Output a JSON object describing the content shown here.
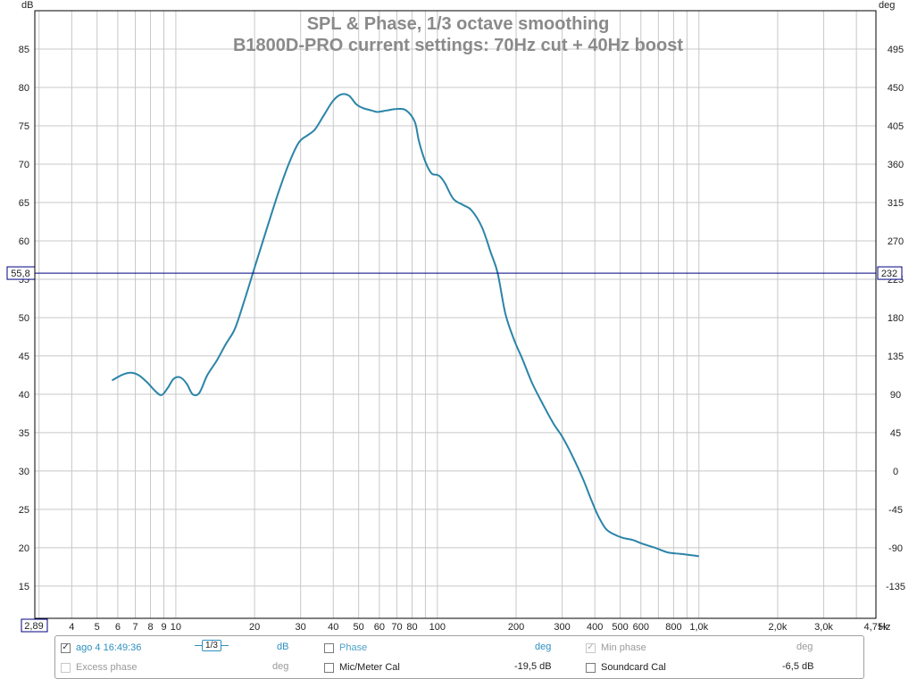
{
  "chart_data": {
    "type": "line",
    "title": "SPL & Phase, 1/3 octave smoothing",
    "subtitle": "B1800D-PRO current settings: 70Hz cut + 40Hz boost",
    "y_left_unit": "dB",
    "y_right_unit": "deg",
    "x_unit": "Hz",
    "x_scale": "log",
    "xlim": [
      2.89,
      4750
    ],
    "ylim": [
      10.8,
      90
    ],
    "y_ticks": [
      15,
      20,
      25,
      30,
      35,
      40,
      45,
      50,
      55,
      60,
      65,
      70,
      75,
      80,
      85
    ],
    "y_right_ticks": [
      {
        "at": 15,
        "label": "-135"
      },
      {
        "at": 20,
        "label": "-90"
      },
      {
        "at": 25,
        "label": "-45"
      },
      {
        "at": 30,
        "label": "0"
      },
      {
        "at": 35,
        "label": "45"
      },
      {
        "at": 40,
        "label": "90"
      },
      {
        "at": 45,
        "label": "135"
      },
      {
        "at": 50,
        "label": "180"
      },
      {
        "at": 55,
        "label": "225"
      },
      {
        "at": 60,
        "label": "270"
      },
      {
        "at": 65,
        "label": "315"
      },
      {
        "at": 70,
        "label": "360"
      },
      {
        "at": 75,
        "label": "405"
      },
      {
        "at": 80,
        "label": "450"
      },
      {
        "at": 85,
        "label": "495"
      }
    ],
    "x_ticks": [
      {
        "v": 4,
        "label": "4"
      },
      {
        "v": 5,
        "label": "5"
      },
      {
        "v": 6,
        "label": "6"
      },
      {
        "v": 7,
        "label": "7"
      },
      {
        "v": 8,
        "label": "8"
      },
      {
        "v": 9,
        "label": "9"
      },
      {
        "v": 10,
        "label": "10"
      },
      {
        "v": 20,
        "label": "20"
      },
      {
        "v": 30,
        "label": "30"
      },
      {
        "v": 40,
        "label": "40"
      },
      {
        "v": 50,
        "label": "50"
      },
      {
        "v": 60,
        "label": "60"
      },
      {
        "v": 70,
        "label": "70"
      },
      {
        "v": 80,
        "label": "80"
      },
      {
        "v": 100,
        "label": "100"
      },
      {
        "v": 200,
        "label": "200"
      },
      {
        "v": 300,
        "label": "300"
      },
      {
        "v": 400,
        "label": "400"
      },
      {
        "v": 500,
        "label": "500"
      },
      {
        "v": 600,
        "label": "600"
      },
      {
        "v": 800,
        "label": "800"
      },
      {
        "v": 1000,
        "label": "1,0k"
      },
      {
        "v": 2000,
        "label": "2,0k"
      },
      {
        "v": 3000,
        "label": "3,0k"
      },
      {
        "v": 4750,
        "label": "4,75k"
      }
    ],
    "cursor": {
      "y": 55.8,
      "y_label": "55,8",
      "y_right_label": "232",
      "x_label": "2,89"
    },
    "colors": {
      "spl": "#2b84a8",
      "cursor": "#000080",
      "grid": "#c8c8c8"
    },
    "series": [
      {
        "x": [
          5.7,
          6.2,
          6.7,
          7.2,
          7.8,
          8.3,
          8.8,
          9.3,
          9.8,
          10.4,
          11.0,
          11.6,
          12.3,
          13.2,
          14.4,
          15.5,
          16.8,
          18.2,
          20.0,
          22.0,
          24.5,
          27.0,
          29.5,
          32.0,
          34.0,
          37.0,
          40.0,
          43.0,
          46.0,
          49.0,
          52.0,
          56.0,
          59.0,
          64.0,
          70.0,
          76.0,
          82.0,
          85.0,
          90.0,
          95.0,
          100.0,
          103.0,
          107.0,
          115.0,
          125.0,
          135.0,
          148.0,
          160.0,
          170.0,
          182.0,
          197.0,
          212.0,
          230.0,
          255.0,
          280.0,
          300.0,
          330.0,
          360.0,
          385.0,
          410.0,
          440.0,
          470.0,
          510.0,
          560.0,
          610.0,
          680.0,
          760.0,
          850.0,
          950.0,
          1000.0
        ],
        "values": [
          41.8,
          42.5,
          42.8,
          42.5,
          41.5,
          40.5,
          39.9,
          40.8,
          42.0,
          42.2,
          41.4,
          40.0,
          40.2,
          42.5,
          44.5,
          46.5,
          48.5,
          52.0,
          56.5,
          61.0,
          66.0,
          70.0,
          72.8,
          73.8,
          74.5,
          76.5,
          78.3,
          79.1,
          78.9,
          77.8,
          77.3,
          77.0,
          76.8,
          77.0,
          77.2,
          77.0,
          75.5,
          73.0,
          70.3,
          68.8,
          68.6,
          68.3,
          67.5,
          65.5,
          64.7,
          64.0,
          61.8,
          58.5,
          55.8,
          50.5,
          47.0,
          44.5,
          41.5,
          38.5,
          36.0,
          34.5,
          31.8,
          29.0,
          26.5,
          24.3,
          22.5,
          21.8,
          21.3,
          21.0,
          20.5,
          20.0,
          19.4,
          19.2,
          19.0,
          18.9
        ],
        "cursor_range_x": [
          5.7,
          1000.0
        ]
      }
    ]
  },
  "legend": {
    "row1": {
      "spl_checked": "✓",
      "spl_label": "ago 4 16:49:36",
      "smoothing": "1/3",
      "spl_unit": "dB",
      "phase_label": "Phase",
      "phase_unit": "deg",
      "minphase_checked": "✓",
      "minphase_label": "Min phase",
      "minphase_unit": "deg"
    },
    "row2": {
      "excess_label": "Excess phase",
      "excess_unit": "deg",
      "mic_label": "Mic/Meter Cal",
      "mic_value": "-19,5 dB",
      "soundcard_label": "Soundcard Cal",
      "soundcard_value": "-6,5 dB"
    }
  }
}
